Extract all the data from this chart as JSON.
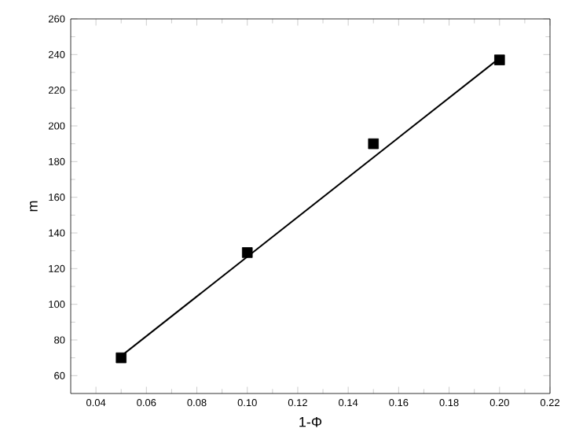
{
  "chart_data": {
    "type": "scatter",
    "xlabel": "1-Φ",
    "ylabel": "m",
    "xlim": [
      0.03,
      0.22
    ],
    "ylim": [
      50,
      260
    ],
    "xticks": [
      {
        "value": 0.04,
        "label": "0.04"
      },
      {
        "value": 0.06,
        "label": "0.06"
      },
      {
        "value": 0.08,
        "label": "0.08"
      },
      {
        "value": 0.1,
        "label": "0.10"
      },
      {
        "value": 0.12,
        "label": "0.12"
      },
      {
        "value": 0.14,
        "label": "0.14"
      },
      {
        "value": 0.16,
        "label": "0.16"
      },
      {
        "value": 0.18,
        "label": "0.18"
      },
      {
        "value": 0.2,
        "label": "0.20"
      },
      {
        "value": 0.22,
        "label": "0.22"
      }
    ],
    "yticks": [
      60,
      80,
      100,
      120,
      140,
      160,
      180,
      200,
      220,
      240,
      260
    ],
    "series": [
      {
        "color": "#000000",
        "marker": "square",
        "x": [
          0.05,
          0.1,
          0.15,
          0.2
        ],
        "values": [
          70,
          129,
          190,
          237
        ]
      },
      {
        "type": "line",
        "color": "#000000",
        "marker": "none",
        "line_style": "solid",
        "x": [
          0.05,
          0.2
        ],
        "values": [
          71,
          238
        ]
      }
    ]
  }
}
